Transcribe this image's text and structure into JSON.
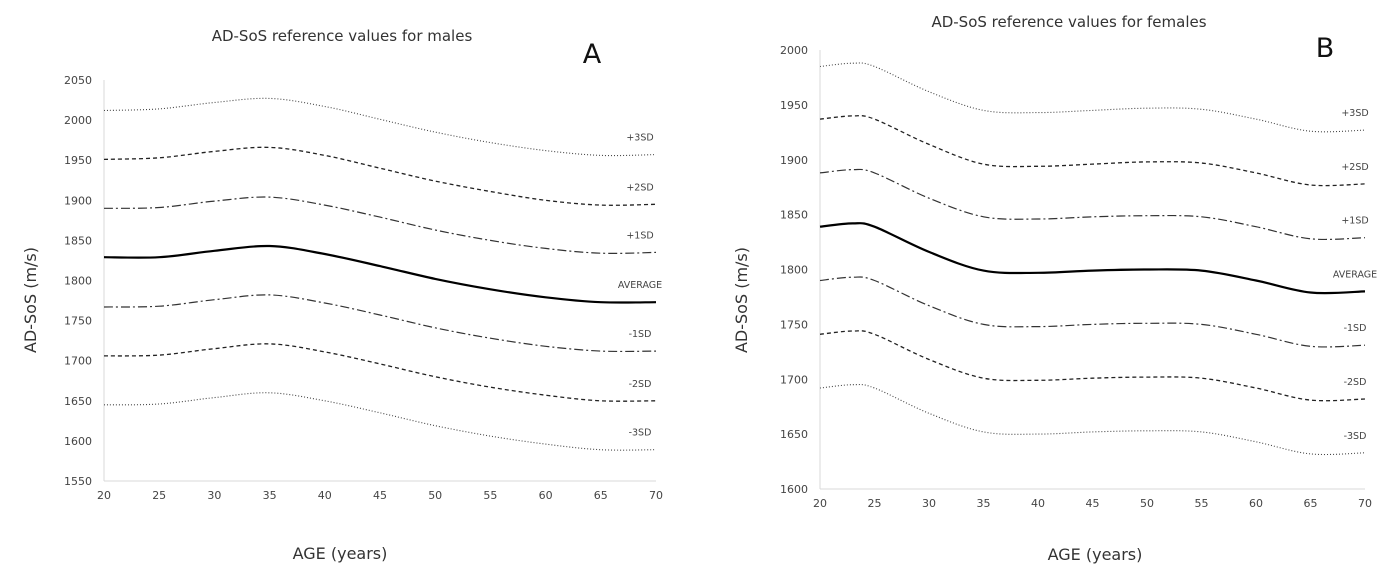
{
  "chart_data": [
    {
      "type": "line",
      "panel_label": "A",
      "title": "AD-SoS reference values for males",
      "xlabel": "AGE (years)",
      "ylabel": "AD-SoS (m/s)",
      "xlim": [
        20,
        70
      ],
      "ylim": [
        1550,
        2050
      ],
      "x_ticks": [
        20,
        25,
        30,
        35,
        40,
        45,
        50,
        55,
        60,
        65,
        70
      ],
      "y_ticks": [
        1550,
        1600,
        1650,
        1700,
        1750,
        1800,
        1850,
        1900,
        1950,
        2000,
        2050
      ],
      "x": [
        20,
        25,
        30,
        35,
        40,
        45,
        50,
        55,
        60,
        65,
        70
      ],
      "series": [
        {
          "name": "+3SD",
          "style": "dotted",
          "values": [
            2012,
            2014,
            2022,
            2027,
            2017,
            2001,
            1985,
            1972,
            1962,
            1956,
            1957
          ]
        },
        {
          "name": "+2SD",
          "style": "dashed",
          "values": [
            1951,
            1953,
            1961,
            1966,
            1956,
            1940,
            1924,
            1911,
            1900,
            1894,
            1895
          ]
        },
        {
          "name": "+1SD",
          "style": "dashdot",
          "values": [
            1890,
            1891,
            1899,
            1904,
            1894,
            1879,
            1863,
            1850,
            1840,
            1834,
            1835
          ]
        },
        {
          "name": "AVERAGE",
          "style": "solid",
          "values": [
            1829,
            1829,
            1837,
            1843,
            1833,
            1818,
            1802,
            1789,
            1779,
            1773,
            1773
          ]
        },
        {
          "name": "-1SD",
          "style": "dashdot",
          "values": [
            1767,
            1768,
            1776,
            1782,
            1772,
            1757,
            1741,
            1728,
            1718,
            1712,
            1712
          ]
        },
        {
          "name": "-2SD",
          "style": "dashed",
          "values": [
            1706,
            1707,
            1715,
            1721,
            1711,
            1696,
            1680,
            1667,
            1657,
            1650,
            1650
          ]
        },
        {
          "name": "-3SD",
          "style": "dotted",
          "values": [
            1645,
            1646,
            1654,
            1660,
            1650,
            1635,
            1619,
            1606,
            1596,
            1589,
            1589
          ]
        }
      ],
      "grid": false,
      "legend": "none"
    },
    {
      "type": "line",
      "panel_label": "B",
      "title": "AD-SoS reference values for females",
      "xlabel": "AGE (years)",
      "ylabel": "AD-SoS (m/s)",
      "xlim": [
        20,
        70
      ],
      "ylim": [
        1600,
        2000
      ],
      "x_ticks": [
        20,
        25,
        30,
        35,
        40,
        45,
        50,
        55,
        60,
        65,
        70
      ],
      "y_ticks": [
        1600,
        1650,
        1700,
        1750,
        1800,
        1850,
        1900,
        1950,
        2000
      ],
      "x": [
        20,
        23,
        25,
        30,
        35,
        40,
        45,
        50,
        55,
        60,
        65,
        70
      ],
      "series": [
        {
          "name": "+3SD",
          "style": "dotted",
          "values": [
            1985,
            1988,
            1985,
            1962,
            1945,
            1943,
            1945,
            1947,
            1946,
            1937,
            1926,
            1927
          ]
        },
        {
          "name": "+2SD",
          "style": "dashed",
          "values": [
            1937,
            1940,
            1937,
            1914,
            1896,
            1894,
            1896,
            1898,
            1897,
            1888,
            1877,
            1878
          ]
        },
        {
          "name": "+1SD",
          "style": "dashdot",
          "values": [
            1888,
            1891,
            1888,
            1865,
            1848,
            1846,
            1848,
            1849,
            1848,
            1839,
            1828,
            1829
          ]
        },
        {
          "name": "AVERAGE",
          "style": "solid",
          "values": [
            1839,
            1842,
            1839,
            1816,
            1799,
            1797,
            1799,
            1800,
            1799,
            1790,
            1779,
            1780
          ]
        },
        {
          "name": "-1SD",
          "style": "dashdot",
          "values": [
            1790,
            1793,
            1790,
            1767,
            1750,
            1748,
            1750,
            1751,
            1750,
            1741,
            1730,
            1731
          ]
        },
        {
          "name": "-2SD",
          "style": "dashed",
          "values": [
            1741,
            1744,
            1741,
            1718,
            1701,
            1699,
            1701,
            1702,
            1701,
            1692,
            1681,
            1682
          ]
        },
        {
          "name": "-3SD",
          "style": "dotted",
          "values": [
            1692,
            1695,
            1692,
            1669,
            1652,
            1650,
            1652,
            1653,
            1652,
            1643,
            1632,
            1633
          ]
        }
      ],
      "grid": false,
      "legend": "none"
    }
  ]
}
